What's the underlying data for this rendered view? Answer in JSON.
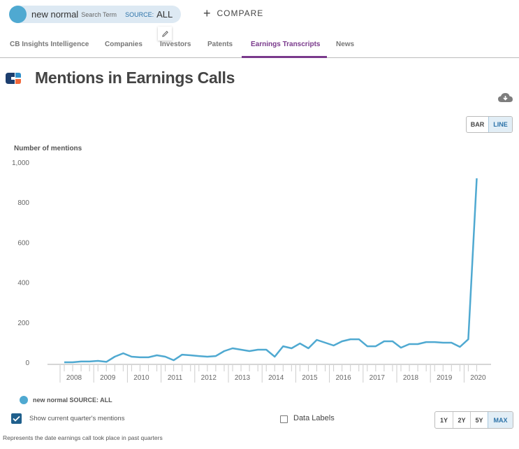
{
  "search": {
    "term": "new normal",
    "term_label": "Search Term",
    "source_label": "SOURCE:",
    "source_value": "ALL",
    "compare_label": "COMPARE",
    "series_color": "#4fa9d1"
  },
  "tabs": [
    {
      "label": "CB Insights Intelligence",
      "active": false
    },
    {
      "label": "Companies",
      "active": false
    },
    {
      "label": "Investors",
      "active": false
    },
    {
      "label": "Patents",
      "active": false
    },
    {
      "label": "Earnings Transcripts",
      "active": true
    },
    {
      "label": "News",
      "active": false
    }
  ],
  "accent_color": "#7a3a8c",
  "page_title": "Mentions in Earnings Calls",
  "chart_toggle": {
    "bar_label": "BAR",
    "line_label": "LINE",
    "selected": "LINE"
  },
  "range_buttons": [
    {
      "label": "1Y",
      "active": false
    },
    {
      "label": "2Y",
      "active": false
    },
    {
      "label": "5Y",
      "active": false
    },
    {
      "label": "MAX",
      "active": true
    }
  ],
  "options": {
    "show_current_label": "Show current quarter's mentions",
    "show_current_checked": true,
    "data_labels_label": "Data Labels",
    "data_labels_checked": false
  },
  "footnote": "Represents the date earnings call took place in past quarters",
  "chart_data": {
    "type": "line",
    "title": "Mentions in Earnings Calls",
    "xlabel": "",
    "ylabel": "Number of mentions",
    "ylim": [
      0,
      1000
    ],
    "yticks": [
      0,
      200,
      400,
      600,
      800,
      1000
    ],
    "ytick_labels": [
      "0",
      "200",
      "400",
      "600",
      "800",
      "1,000"
    ],
    "x_tick_labels": [
      "2008",
      "2009",
      "2010",
      "2011",
      "2012",
      "2013",
      "2014",
      "2015",
      "2016",
      "2017",
      "2018",
      "2019",
      "2020"
    ],
    "x_granularity": "quarter",
    "x_start": "2008 Q1",
    "grid": false,
    "legend_position": "bottom-left",
    "series": [
      {
        "name": "new normal SOURCE: ALL",
        "color": "#4fa9d1",
        "values": [
          0,
          0,
          4,
          4,
          7,
          2,
          28,
          45,
          28,
          25,
          25,
          35,
          28,
          10,
          38,
          35,
          31,
          28,
          31,
          56,
          70,
          63,
          56,
          63,
          63,
          28,
          80,
          70,
          94,
          70,
          112,
          98,
          84,
          105,
          115,
          115,
          80,
          80,
          105,
          105,
          73,
          91,
          91,
          101,
          101,
          98,
          98,
          77,
          115,
          920
        ]
      }
    ]
  }
}
